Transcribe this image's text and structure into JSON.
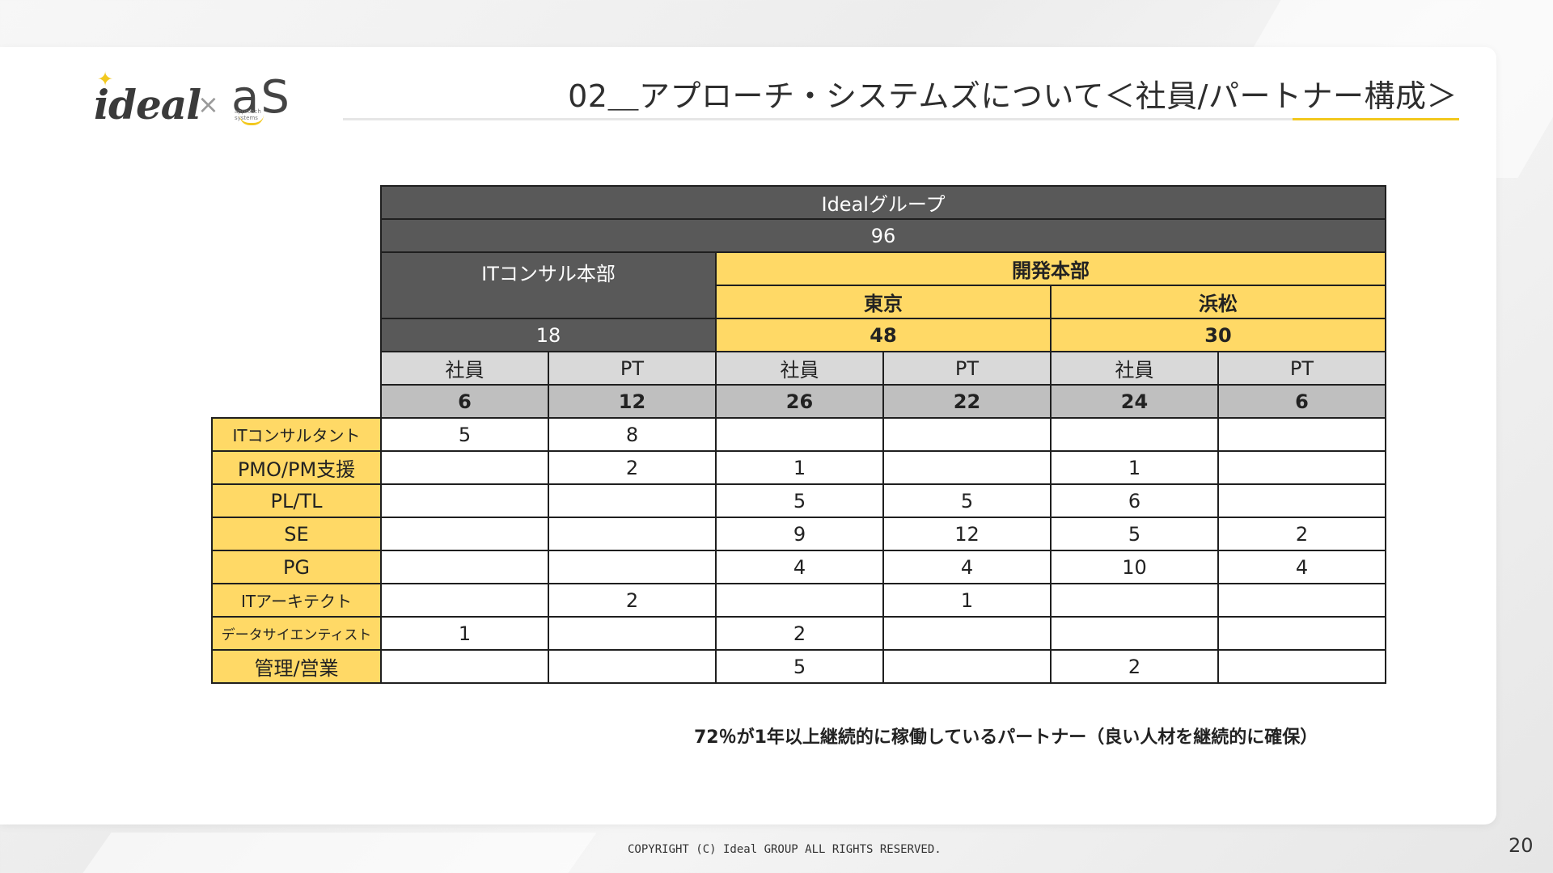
{
  "header": {
    "logo_left": "ideal",
    "logo_separator": "×",
    "logo_right": "aS",
    "logo_right_sub1": "approach",
    "logo_right_sub2": "systems",
    "title": "02＿アプローチ・システムズについて＜社員/パートナー構成＞"
  },
  "table": {
    "group_name": "Idealグループ",
    "group_total": "96",
    "divisions": {
      "it_consul": {
        "name": "ITコンサル本部",
        "total": "18"
      },
      "dev": {
        "name": "開発本部"
      },
      "tokyo": {
        "name": "東京",
        "total": "48"
      },
      "hamamatsu": {
        "name": "浜松",
        "total": "30"
      }
    },
    "col_labels": [
      "社員",
      "PT",
      "社員",
      "PT",
      "社員",
      "PT"
    ],
    "col_totals": [
      "6",
      "12",
      "26",
      "22",
      "24",
      "6"
    ],
    "rows": [
      {
        "role": "ITコンサルタント",
        "values": [
          "5",
          "8",
          "",
          "",
          "",
          ""
        ]
      },
      {
        "role": "PMO/PM支援",
        "values": [
          "",
          "2",
          "1",
          "",
          "1",
          ""
        ]
      },
      {
        "role": "PL/TL",
        "values": [
          "",
          "",
          "5",
          "5",
          "6",
          ""
        ]
      },
      {
        "role": "SE",
        "values": [
          "",
          "",
          "9",
          "12",
          "5",
          "2"
        ]
      },
      {
        "role": "PG",
        "values": [
          "",
          "",
          "4",
          "4",
          "10",
          "4"
        ]
      },
      {
        "role": "ITアーキテクト",
        "values": [
          "",
          "2",
          "",
          "1",
          "",
          ""
        ]
      },
      {
        "role": "データサイエンティスト",
        "values": [
          "1",
          "",
          "2",
          "",
          "",
          ""
        ]
      },
      {
        "role": "管理/営業",
        "values": [
          "",
          "",
          "5",
          "",
          "2",
          ""
        ]
      }
    ]
  },
  "footnote": "72％が1年以上継続的に稼働しているパートナー（良い人材を継続的に確保）",
  "footer": {
    "copyright": "COPYRIGHT (C) Ideal GROUP ALL RIGHTS RESERVED.",
    "page_number": "20"
  },
  "colors": {
    "dark_header": "#595959",
    "accent_yellow": "#ffd966",
    "logo_yellow": "#f2c81e",
    "light_gray": "#d9d9d9",
    "mid_gray": "#bfbfbf"
  }
}
